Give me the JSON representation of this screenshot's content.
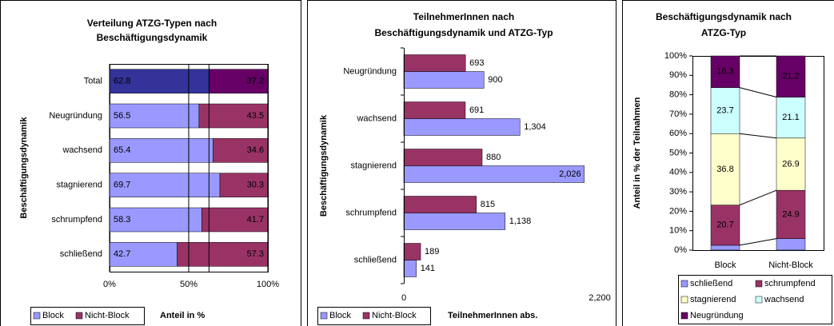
{
  "chart_data": [
    {
      "type": "bar",
      "orientation": "horizontal",
      "stacked": true,
      "reference_line": true,
      "title": [
        "Verteilung ATZG-Typen nach",
        "Beschäftigungsdynamik"
      ],
      "categories": [
        "Total",
        "Neugründung",
        "wachsend",
        "stagnierend",
        "schrumpfend",
        "schließend"
      ],
      "series": [
        {
          "name": "Block",
          "color": "#9999FF",
          "colors": [
            "#333399",
            "#9999FF",
            "#9999FF",
            "#9999FF",
            "#9999FF",
            "#9999FF"
          ],
          "values": [
            62.8,
            56.5,
            65.4,
            69.7,
            58.3,
            42.7
          ]
        },
        {
          "name": "Nicht-Block",
          "color": "#993366",
          "colors": [
            "#660066",
            "#993366",
            "#993366",
            "#993366",
            "#993366",
            "#993366"
          ],
          "values": [
            37.2,
            43.5,
            34.6,
            30.3,
            41.7,
            57.3
          ]
        }
      ],
      "xlim": [
        0,
        100
      ],
      "xticks": [
        {
          "value": 0,
          "label": "0%"
        },
        {
          "value": 50,
          "label": "50%"
        },
        {
          "value": 100,
          "label": "100%"
        }
      ],
      "grid": true,
      "y_label": "Beschäftigungsdynamik",
      "x_label": "Anteil in %",
      "legend": "bottom-left"
    },
    {
      "type": "bar",
      "orientation": "horizontal",
      "stacked": false,
      "title": [
        "TeilnehmerInnen nach",
        "Beschäftigungsdynamik und ATZG-Typ"
      ],
      "categories": [
        "Neugründung",
        "wachsend",
        "stagnierend",
        "schrumpfend",
        "schließend"
      ],
      "series": [
        {
          "name": "Block",
          "color": "#9999FF",
          "values": [
            900,
            1304,
            2026,
            1138,
            141
          ],
          "value_labels": [
            "900",
            "1,304",
            "2,026",
            "1,138",
            "141"
          ]
        },
        {
          "name": "Nicht-Block",
          "color": "#993366",
          "values": [
            693,
            691,
            880,
            815,
            189
          ]
        }
      ],
      "xlim": [
        0,
        2200
      ],
      "xticks": [
        0,
        {
          "value": 2200,
          "label": "2,200"
        }
      ],
      "grid": false,
      "y_label": "Beschäftigungsdynamik",
      "x_label": "TeilnehmerInnen abs.",
      "legend": "bottom-left"
    },
    {
      "type": "bar",
      "orientation": "vertical",
      "stacked": true,
      "series_lines": true,
      "title": [
        "Beschäftigungsdynamik nach",
        "ATZG-Typ"
      ],
      "categories": [
        "Block",
        "Nicht-Block"
      ],
      "series": [
        {
          "name": "schließend",
          "color": "#9999FF",
          "values": [
            2.5,
            5.9
          ],
          "data_labels": false
        },
        {
          "name": "schrumpfend",
          "color": "#993366",
          "values": [
            20.7,
            24.9
          ]
        },
        {
          "name": "stagnierend",
          "color": "#FFFFCC",
          "values": [
            36.8,
            26.9
          ]
        },
        {
          "name": "wachsend",
          "color": "#CCFFFF",
          "values": [
            23.7,
            21.1
          ]
        },
        {
          "name": "Neugründung",
          "color": "#660066",
          "values": [
            16.3,
            21.2
          ]
        }
      ],
      "ylim": [
        0,
        100
      ],
      "yticks": [
        {
          "value": 0,
          "label": "0%"
        },
        {
          "value": 10,
          "label": "10%"
        },
        {
          "value": 20,
          "label": "20%"
        },
        {
          "value": 30,
          "label": "30%"
        },
        {
          "value": 40,
          "label": "40%"
        },
        {
          "value": 50,
          "label": "50%"
        },
        {
          "value": 60,
          "label": "60%"
        },
        {
          "value": 70,
          "label": "70%"
        },
        {
          "value": 80,
          "label": "80%"
        },
        {
          "value": 90,
          "label": "90%"
        },
        {
          "value": 100,
          "label": "100%"
        }
      ],
      "grid": false,
      "y_label": "Anteil in % der Teilnahmen",
      "legend": "bottom"
    }
  ]
}
